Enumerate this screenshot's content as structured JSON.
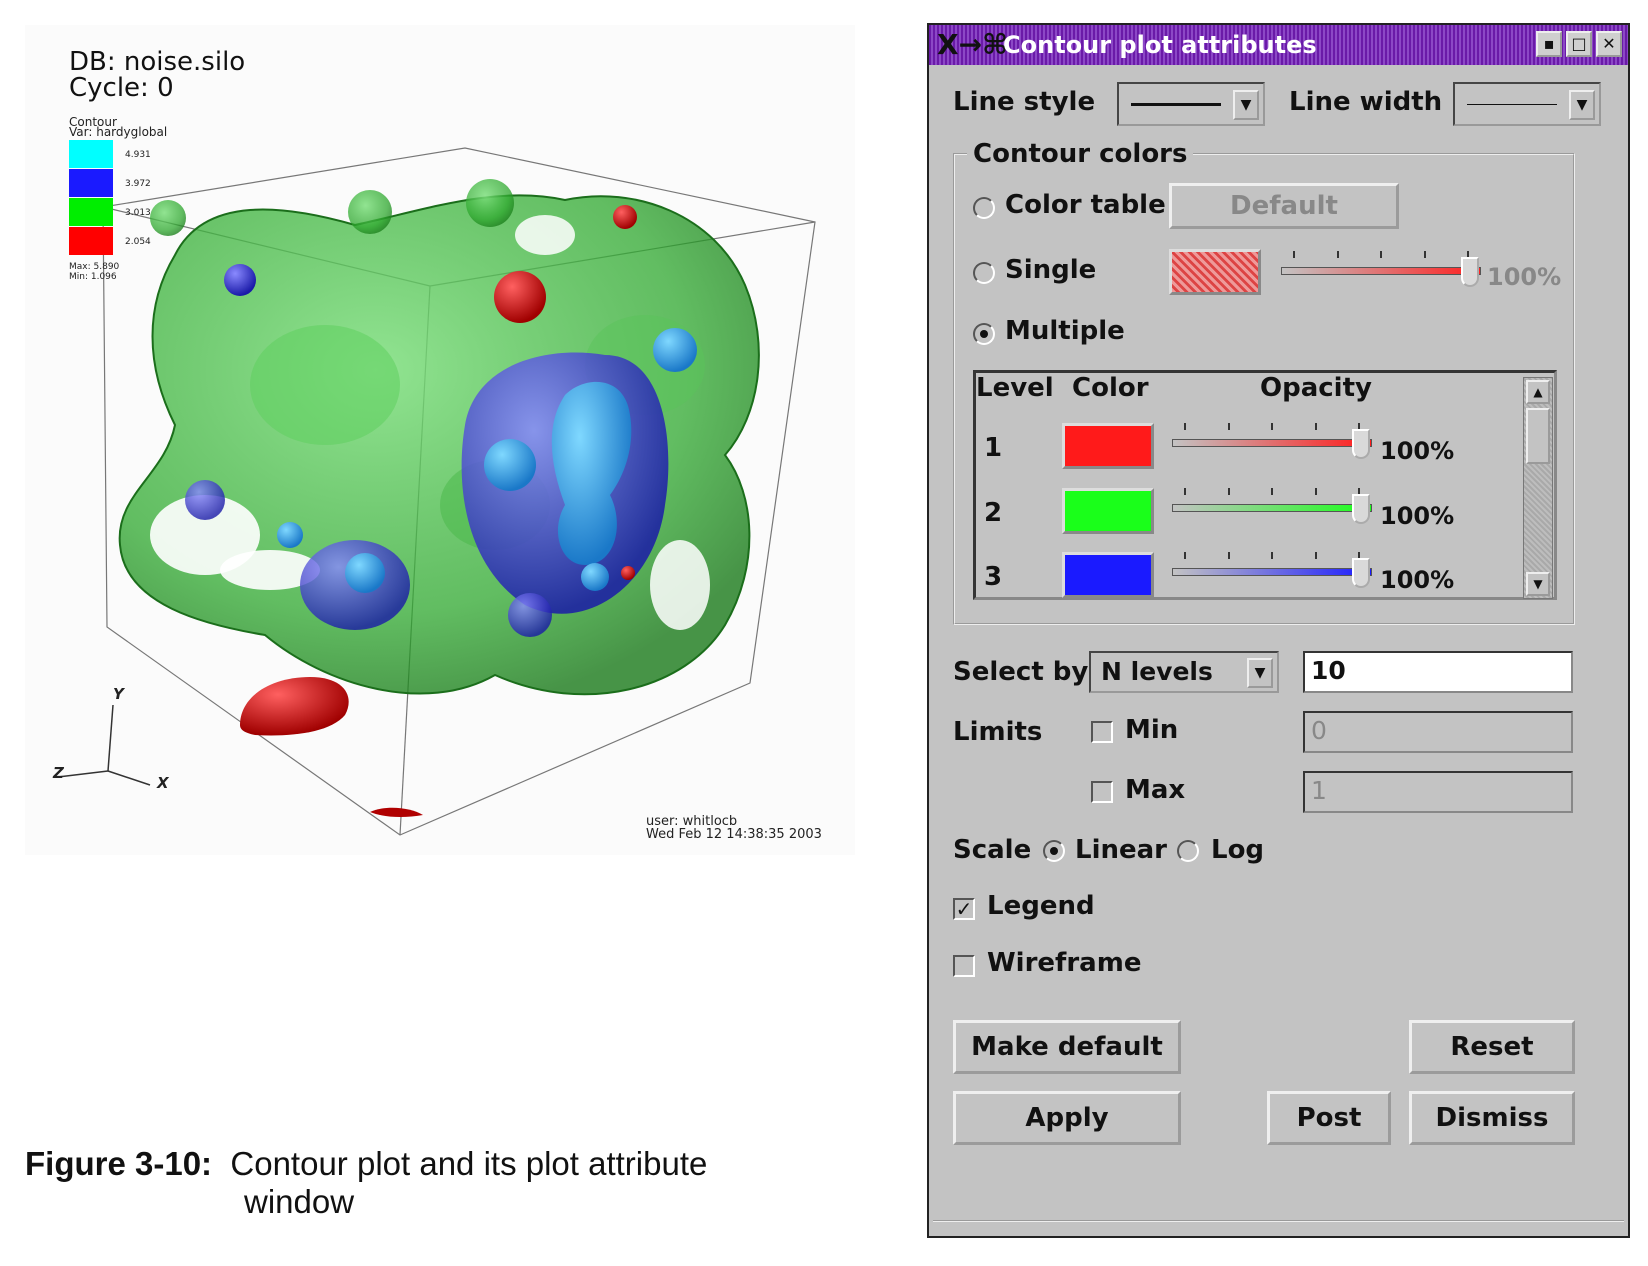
{
  "viz": {
    "db_line": "DB: noise.silo",
    "cycle_line": "Cycle: 0",
    "legend_plot": "Contour",
    "legend_var": "Var: hardyglobal",
    "legend_levels": [
      {
        "label": "4.931",
        "color": "#00ffff"
      },
      {
        "label": "3.972",
        "color": "#1a1aff"
      },
      {
        "label": "3.013",
        "color": "#00ee00"
      },
      {
        "label": "2.054",
        "color": "#ff0000"
      }
    ],
    "legend_max": "Max: 5.890",
    "legend_min": "Min: 1.096",
    "axis_y": "Y",
    "axis_z": "Z",
    "axis_x": "X",
    "user_line": "user: whitlocb",
    "date_line": "Wed Feb 12 14:38:35 2003"
  },
  "caption": {
    "label": "Figure 3-10:",
    "text1": "Contour plot and its plot attribute",
    "text2": "window"
  },
  "dialog": {
    "title": "Contour plot attributes",
    "title_icon": "X→⌘",
    "line_style_label": "Line style",
    "line_width_label": "Line width",
    "contour_colors_title": "Contour colors",
    "color_table_label": "Color table",
    "default_button": "Default",
    "single_label": "Single",
    "single_opacity": "100%",
    "multiple_label": "Multiple",
    "col_level": "Level",
    "col_color": "Color",
    "col_opacity": "Opacity",
    "levels": [
      {
        "level": "1",
        "color": "#ff1a1a",
        "opacity": "100%"
      },
      {
        "level": "2",
        "color": "#1aff1a",
        "opacity": "100%"
      },
      {
        "level": "3",
        "color": "#1a1aff",
        "opacity": "100%"
      }
    ],
    "select_by_label": "Select by",
    "select_by_value": "N levels",
    "select_by_count": "10",
    "limits_label": "Limits",
    "min_label": "Min",
    "min_value": "0",
    "max_label": "Max",
    "max_value": "1",
    "scale_label": "Scale",
    "linear_label": "Linear",
    "log_label": "Log",
    "legend_label": "Legend",
    "legend_checked": "✓",
    "wireframe_label": "Wireframe",
    "make_default_button": "Make default",
    "reset_button": "Reset",
    "apply_button": "Apply",
    "post_button": "Post",
    "dismiss_button": "Dismiss"
  }
}
